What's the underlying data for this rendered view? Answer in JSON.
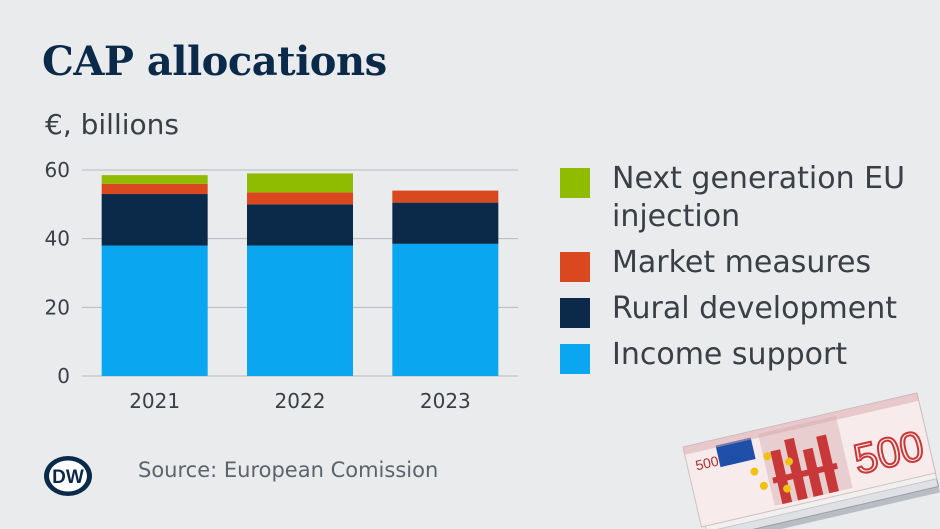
{
  "header": {
    "title": "CAP allocations",
    "subtitle": "€, billions"
  },
  "footer": {
    "source": "Source: European Comission",
    "logo_text": "DW"
  },
  "colors": {
    "next_generation": "#8fbc00",
    "market_measures": "#d9481e",
    "rural_development": "#0b2a4a",
    "income_support": "#0aa6ef",
    "background": "#e9ebed"
  },
  "banknote": {
    "denomination": "500",
    "currency": "EURO"
  },
  "chart_data": {
    "type": "bar",
    "stacked": true,
    "categories": [
      "2021",
      "2022",
      "2023"
    ],
    "series": [
      {
        "name": "Income support",
        "values": [
          38,
          38,
          38.5
        ],
        "color": "#0aa6ef"
      },
      {
        "name": "Rural development",
        "values": [
          15,
          12,
          12
        ],
        "color": "#0b2a4a"
      },
      {
        "name": "Market measures",
        "values": [
          3,
          3.5,
          3.5
        ],
        "color": "#d9481e"
      },
      {
        "name": "Next generation EU injection",
        "values": [
          2.5,
          5.5,
          0
        ],
        "color": "#8fbc00"
      }
    ],
    "legend": [
      "Next generation EU injection",
      "Market measures",
      "Rural development",
      "Income support"
    ],
    "title": "CAP allocations",
    "ylabel": "€, billions",
    "xlabel": "",
    "ylim": [
      0,
      60
    ],
    "yticks": [
      0,
      20,
      40,
      60
    ],
    "grid": true,
    "legend_position": "right"
  }
}
